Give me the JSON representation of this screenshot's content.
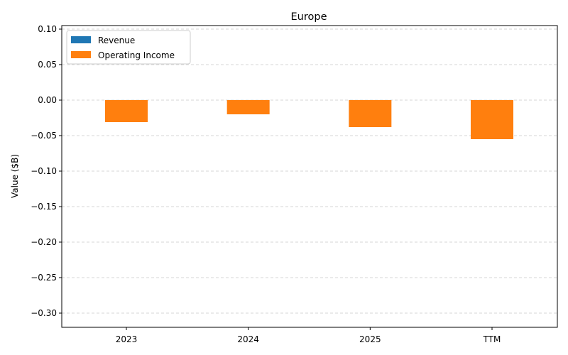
{
  "chart_data": {
    "type": "bar",
    "title": "Europe",
    "xlabel": "",
    "ylabel": "Value ($B)",
    "categories": [
      "2023",
      "2024",
      "2025",
      "TTM"
    ],
    "series": [
      {
        "name": "Revenue",
        "color": "#1f77b4",
        "values": [
          0,
          0,
          0,
          0
        ]
      },
      {
        "name": "Operating Income",
        "color": "#ff7f0e",
        "values": [
          -0.031,
          -0.02,
          -0.038,
          -0.055
        ]
      }
    ],
    "ylim": [
      -0.32,
      0.105
    ],
    "yticks": [
      0.1,
      0.05,
      0.0,
      -0.05,
      -0.1,
      -0.15,
      -0.2,
      -0.25,
      -0.3
    ],
    "ytick_labels": [
      "0.10",
      "0.05",
      "0.00",
      "−0.05",
      "−0.10",
      "−0.15",
      "−0.20",
      "−0.25",
      "−0.30"
    ],
    "grid": "horizontal-dashed",
    "legend_position": "top-left"
  }
}
